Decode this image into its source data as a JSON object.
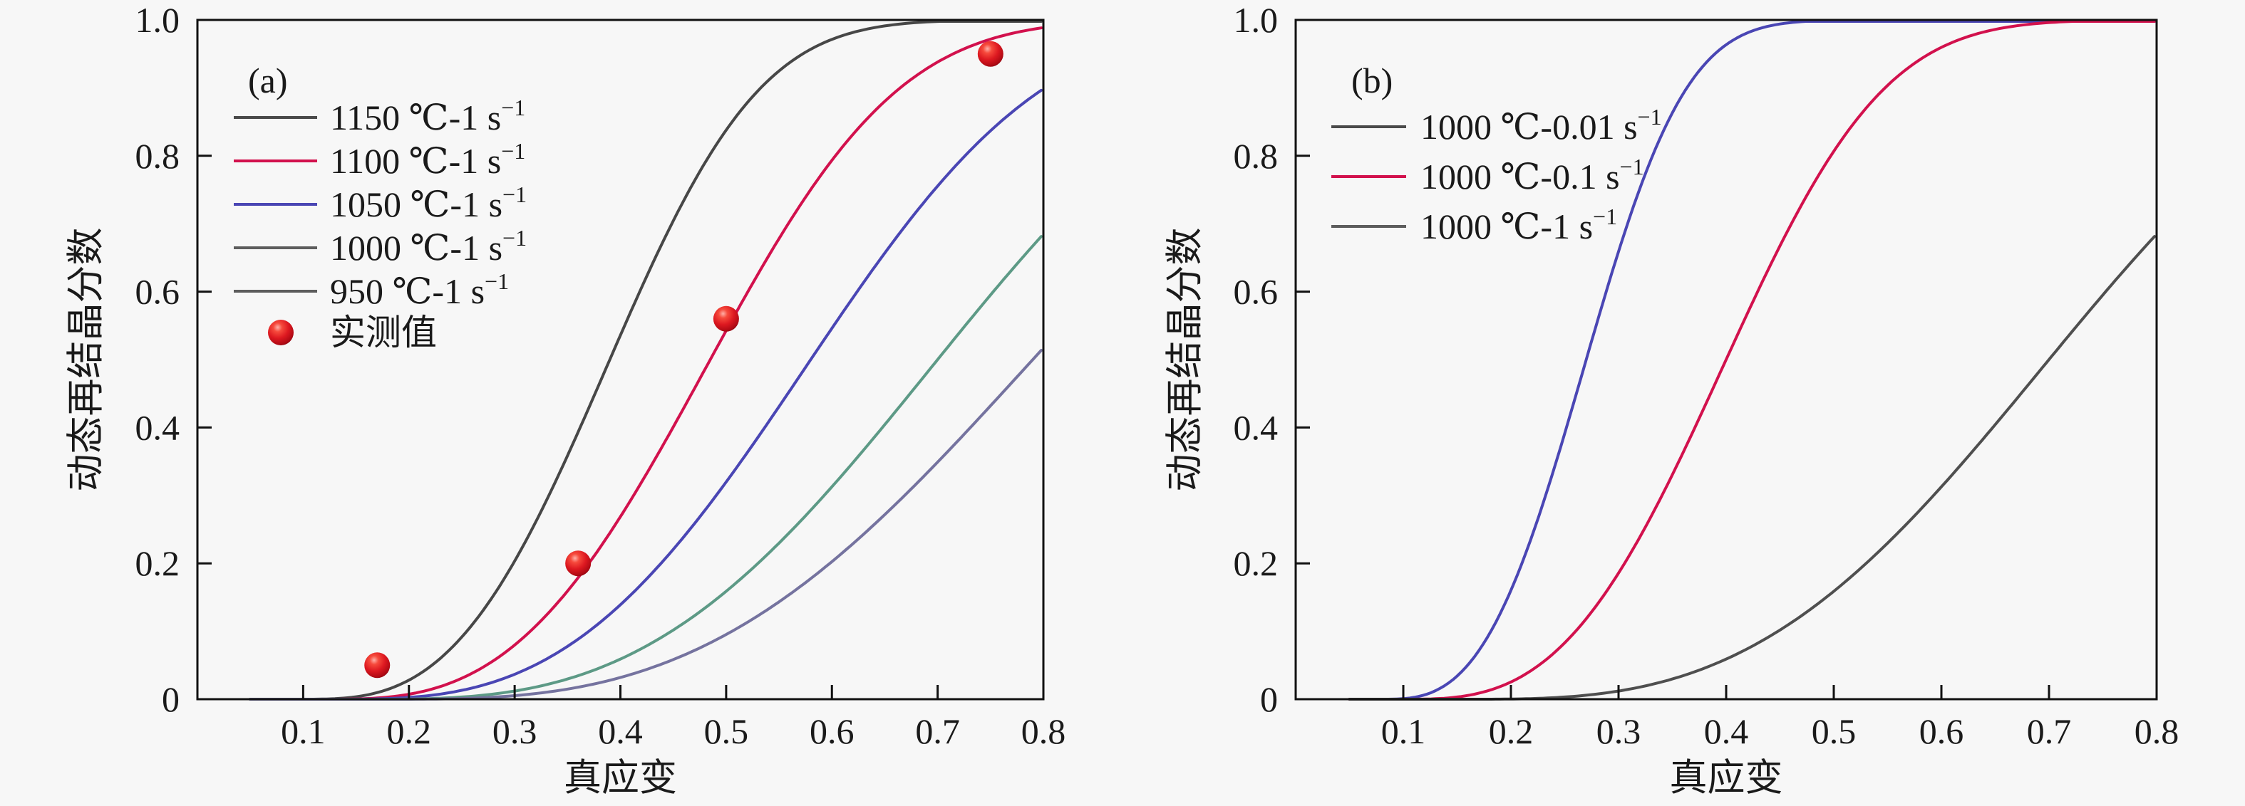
{
  "figure": {
    "background": "#f7f7f7",
    "axis_color": "#111111",
    "text_color": "#1a1a1a",
    "marker_color": "#e01d1d"
  },
  "chart_data": [
    {
      "panel_tag": "(a)",
      "type": "line",
      "title": "",
      "xlabel": "真应变",
      "ylabel": "动态再结晶分数",
      "xlim": [
        0,
        0.8
      ],
      "ylim": [
        0,
        1.0
      ],
      "xticks": [
        0.1,
        0.2,
        0.3,
        0.4,
        0.5,
        0.6,
        0.7,
        0.8
      ],
      "xtick_labels": [
        "0.1",
        "0.2",
        "0.3",
        "0.4",
        "0.5",
        "0.6",
        "0.7",
        "0.8"
      ],
      "yticks": [
        0,
        0.2,
        0.4,
        0.6,
        0.8,
        1.0
      ],
      "ytick_labels": [
        "0",
        "0.2",
        "0.4",
        "0.6",
        "0.8",
        "1.0"
      ],
      "grid": false,
      "legend_position": "upper-left-inside",
      "series": [
        {
          "name": "1150 ℃-1 s⁻¹",
          "legend_base": "1150 ℃-1 s",
          "legend_sup": "−1",
          "color": "#474747",
          "key_color": "#4a4a4a",
          "model": "JMAK",
          "onset_strain": 0.1,
          "half_strain": 0.39,
          "avrami_exponent": 3,
          "curve_points": [
            [
              0.1,
              0
            ],
            [
              0.2,
              0.03
            ],
            [
              0.3,
              0.2
            ],
            [
              0.39,
              0.5
            ],
            [
              0.5,
              0.84
            ],
            [
              0.6,
              0.97
            ],
            [
              0.7,
              1.0
            ],
            [
              0.8,
              1.0
            ]
          ]
        },
        {
          "name": "1100 ℃-1 s⁻¹",
          "legend_base": "1100 ℃-1 s",
          "legend_sup": "−1",
          "color": "#d2114d",
          "key_color": "#d2114d",
          "model": "JMAK",
          "onset_strain": 0.12,
          "half_strain": 0.485,
          "avrami_exponent": 3,
          "curve_points": [
            [
              0.2,
              0.01
            ],
            [
              0.3,
              0.08
            ],
            [
              0.4,
              0.27
            ],
            [
              0.485,
              0.5
            ],
            [
              0.6,
              0.79
            ],
            [
              0.7,
              0.94
            ],
            [
              0.8,
              0.99
            ]
          ]
        },
        {
          "name": "1050 ℃-1 s⁻¹",
          "legend_base": "1050 ℃-1 s",
          "legend_sup": "−1",
          "color": "#4a46b4",
          "key_color": "#4a46b4",
          "model": "JMAK",
          "onset_strain": 0.13,
          "half_strain": 0.58,
          "avrami_exponent": 3,
          "curve_points": [
            [
              0.3,
              0.04
            ],
            [
              0.4,
              0.14
            ],
            [
              0.5,
              0.32
            ],
            [
              0.58,
              0.5
            ],
            [
              0.7,
              0.76
            ],
            [
              0.8,
              0.9
            ]
          ]
        },
        {
          "name": "1000 ℃-1 s⁻¹",
          "legend_base": "1000 ℃-1 s",
          "legend_sup": "−1",
          "color": "#5d9a86",
          "key_color": "#5d5d5d",
          "model": "JMAK",
          "onset_strain": 0.16,
          "half_strain": 0.7,
          "avrami_exponent": 3,
          "curve_points": [
            [
              0.4,
              0.06
            ],
            [
              0.5,
              0.16
            ],
            [
              0.6,
              0.31
            ],
            [
              0.7,
              0.5
            ],
            [
              0.8,
              0.69
            ]
          ]
        },
        {
          "name": "950 ℃-1 s⁻¹",
          "legend_base": "950 ℃-1 s",
          "legend_sup": "−1",
          "color": "#75739f",
          "key_color": "#5d5d5d",
          "model": "JMAK",
          "onset_strain": 0.18,
          "half_strain": 0.79,
          "avrami_exponent": 3,
          "curve_points": [
            [
              0.4,
              0.03
            ],
            [
              0.5,
              0.1
            ],
            [
              0.6,
              0.2
            ],
            [
              0.7,
              0.35
            ],
            [
              0.79,
              0.5
            ],
            [
              0.8,
              0.52
            ]
          ]
        }
      ],
      "measured": {
        "name": "实测值",
        "marker": "red-sphere",
        "color": "#e01d1d",
        "points": [
          [
            0.17,
            0.05
          ],
          [
            0.36,
            0.2
          ],
          [
            0.5,
            0.56
          ],
          [
            0.75,
            0.95
          ]
        ]
      }
    },
    {
      "panel_tag": "(b)",
      "type": "line",
      "title": "",
      "xlabel": "真应变",
      "ylabel": "动态再结晶分数",
      "xlim": [
        0,
        0.8
      ],
      "ylim": [
        0,
        1.0
      ],
      "xticks": [
        0.1,
        0.2,
        0.3,
        0.4,
        0.5,
        0.6,
        0.7,
        0.8
      ],
      "xtick_labels": [
        "0.1",
        "0.2",
        "0.3",
        "0.4",
        "0.5",
        "0.6",
        "0.7",
        "0.8"
      ],
      "yticks": [
        0,
        0.2,
        0.4,
        0.6,
        0.8,
        1.0
      ],
      "ytick_labels": [
        "0",
        "0.2",
        "0.4",
        "0.6",
        "0.8",
        "1.0"
      ],
      "grid": false,
      "legend_position": "upper-left-inside",
      "series": [
        {
          "name": "1000 ℃-0.01 s⁻¹",
          "legend_base": "1000 ℃-0.01 s",
          "legend_sup": "−1",
          "color": "#4a46b4",
          "key_color": "#4a4a4a",
          "model": "JMAK",
          "onset_strain": 0.08,
          "half_strain": 0.27,
          "avrami_exponent": 3,
          "curve_points": [
            [
              0.1,
              0
            ],
            [
              0.15,
              0.03
            ],
            [
              0.2,
              0.16
            ],
            [
              0.27,
              0.5
            ],
            [
              0.3,
              0.66
            ],
            [
              0.35,
              0.86
            ],
            [
              0.4,
              0.96
            ],
            [
              0.45,
              0.99
            ],
            [
              0.5,
              1.0
            ]
          ]
        },
        {
          "name": "1000 ℃-0.1 s⁻¹",
          "legend_base": "1000 ℃-0.1 s",
          "legend_sup": "−1",
          "color": "#d2114d",
          "key_color": "#d2114d",
          "model": "JMAK",
          "onset_strain": 0.1,
          "half_strain": 0.4,
          "avrami_exponent": 3,
          "curve_points": [
            [
              0.2,
              0.03
            ],
            [
              0.3,
              0.19
            ],
            [
              0.4,
              0.5
            ],
            [
              0.5,
              0.81
            ],
            [
              0.6,
              0.96
            ],
            [
              0.7,
              0.99
            ],
            [
              0.8,
              1.0
            ]
          ]
        },
        {
          "name": "1000 ℃-1 s⁻¹",
          "legend_base": "1000 ℃-1 s",
          "legend_sup": "−1",
          "color": "#4f4f4f",
          "key_color": "#5d5d5d",
          "model": "JMAK",
          "onset_strain": 0.16,
          "half_strain": 0.7,
          "avrami_exponent": 3,
          "curve_points": [
            [
              0.4,
              0.06
            ],
            [
              0.5,
              0.16
            ],
            [
              0.6,
              0.31
            ],
            [
              0.7,
              0.5
            ],
            [
              0.8,
              0.69
            ]
          ]
        }
      ]
    }
  ]
}
